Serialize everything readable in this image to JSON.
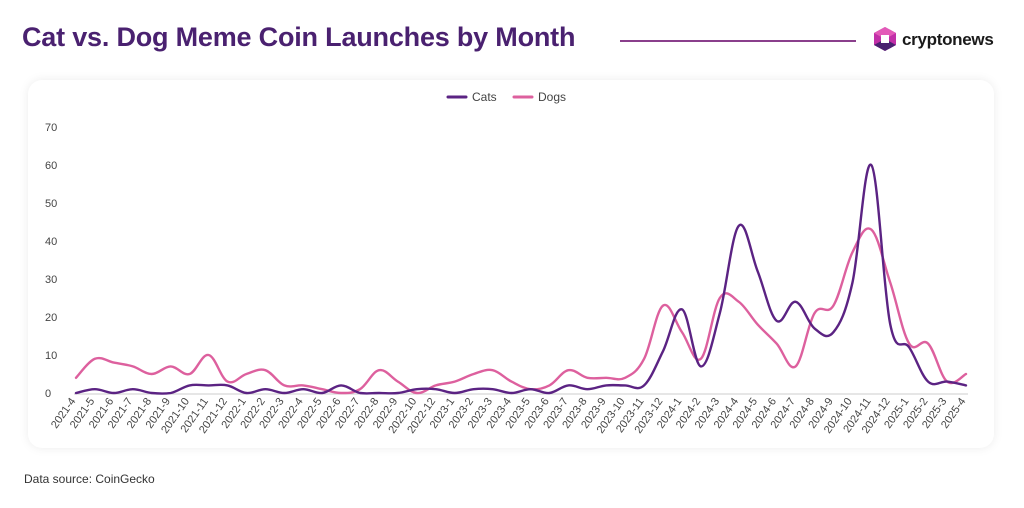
{
  "header": {
    "title": "Cat vs. Dog Meme Coin Launches by Month",
    "brand": "cryptonews"
  },
  "footer": {
    "source": "Data source: CoinGecko"
  },
  "colors": {
    "title": "#4a2170",
    "cats": "#5b2383",
    "dogs": "#dd609e",
    "rule": "#8a3f8c"
  },
  "chart_data": {
    "type": "line",
    "title": "",
    "xlabel": "",
    "ylabel": "",
    "ylim": [
      0,
      70
    ],
    "yticks": [
      0,
      10,
      20,
      30,
      40,
      50,
      60,
      70
    ],
    "grid": false,
    "legend": "top-center",
    "x": [
      "2021-4",
      "2021-5",
      "2021-6",
      "2021-7",
      "2021-8",
      "2021-9",
      "2021-10",
      "2021-11",
      "2021-12",
      "2022-1",
      "2022-2",
      "2022-3",
      "2022-4",
      "2022-5",
      "2022-6",
      "2022-7",
      "2022-8",
      "2022-9",
      "2022-10",
      "2022-12",
      "2023-1",
      "2023-2",
      "2023-3",
      "2023-4",
      "2023-5",
      "2023-6",
      "2023-7",
      "2023-8",
      "2023-9",
      "2023-10",
      "2023-11",
      "2023-12",
      "2024-1",
      "2024-2",
      "2024-3",
      "2024-4",
      "2024-5",
      "2024-6",
      "2024-7",
      "2024-8",
      "2024-9",
      "2024-10",
      "2024-11",
      "2024-12",
      "2025-1",
      "2025-2",
      "2025-3",
      "2025-4"
    ],
    "series": [
      {
        "name": "Cats",
        "color": "#5b2383",
        "values": [
          0,
          1,
          0,
          1,
          0,
          0,
          2,
          2,
          2,
          0,
          1,
          0,
          1,
          0,
          2,
          0,
          0,
          0,
          1,
          1,
          0,
          1,
          1,
          0,
          1,
          0,
          2,
          1,
          2,
          2,
          2,
          11,
          22,
          7,
          21,
          44,
          32,
          19,
          24,
          17,
          16,
          29,
          60,
          18,
          12,
          3,
          3,
          2
        ]
      },
      {
        "name": "Dogs",
        "color": "#dd609e",
        "values": [
          4,
          9,
          8,
          7,
          5,
          7,
          5,
          10,
          3,
          5,
          6,
          2,
          2,
          1,
          0,
          1,
          6,
          3,
          0,
          2,
          3,
          5,
          6,
          3,
          1,
          2,
          6,
          4,
          4,
          4,
          9,
          23,
          16,
          9,
          25,
          24,
          18,
          13,
          7,
          21,
          23,
          37,
          43,
          29,
          13,
          13,
          3,
          5
        ]
      }
    ]
  }
}
